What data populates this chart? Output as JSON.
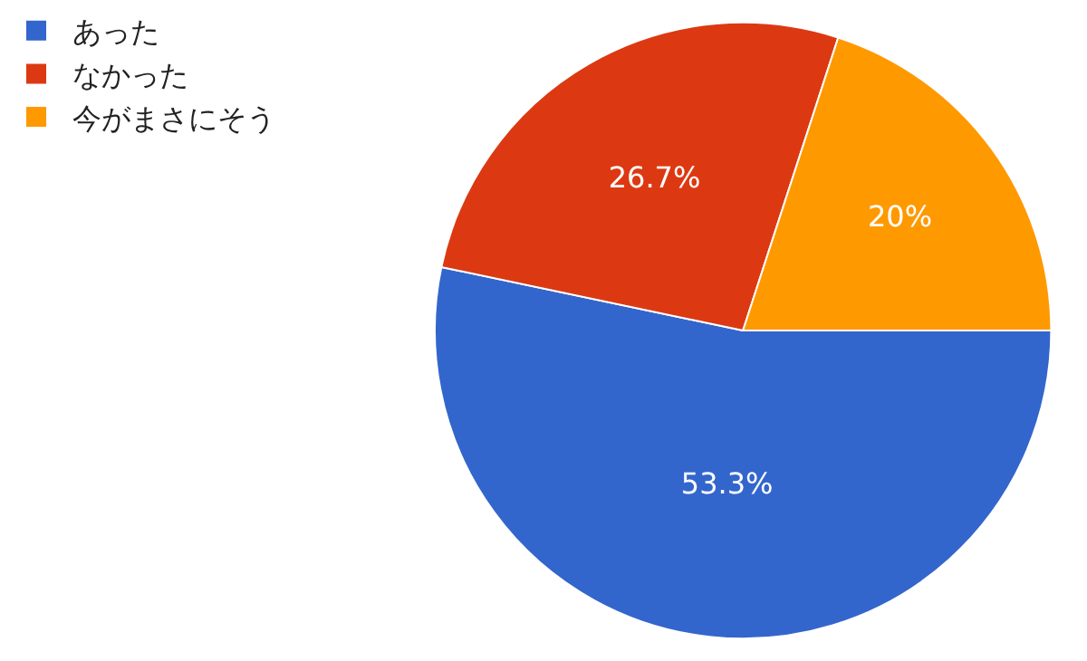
{
  "chart_data": {
    "type": "pie",
    "categories": [
      "あった",
      "なかった",
      "今がまさにそう"
    ],
    "values": [
      53.3,
      26.7,
      20
    ],
    "colors": [
      "#3366cc",
      "#dc3912",
      "#ff9900"
    ],
    "value_labels": [
      "53.3%",
      "26.7%",
      "20%"
    ],
    "legend": "top left"
  }
}
